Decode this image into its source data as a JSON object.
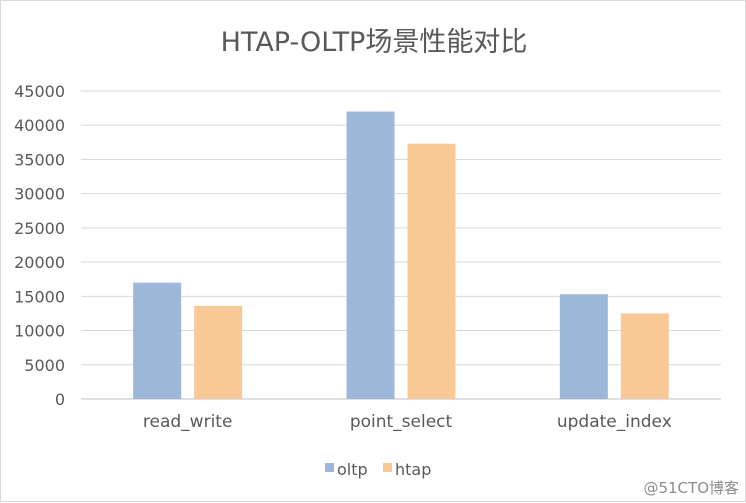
{
  "chart_data": {
    "type": "bar",
    "title": "HTAP-OLTP场景性能对比",
    "categories": [
      "read_write",
      "point_select",
      "update_index"
    ],
    "series": [
      {
        "name": "oltp",
        "values": [
          17000,
          42000,
          15300
        ],
        "color": "#9db7d9"
      },
      {
        "name": "htap",
        "values": [
          13600,
          37300,
          12500
        ],
        "color": "#f9c897"
      }
    ],
    "xlabel": "",
    "ylabel": "",
    "ylim": [
      0,
      45000
    ],
    "yticks": [
      0,
      5000,
      10000,
      15000,
      20000,
      25000,
      30000,
      35000,
      40000,
      45000
    ],
    "grid": true,
    "legend_position": "bottom"
  },
  "watermark": "@51CTO博客"
}
